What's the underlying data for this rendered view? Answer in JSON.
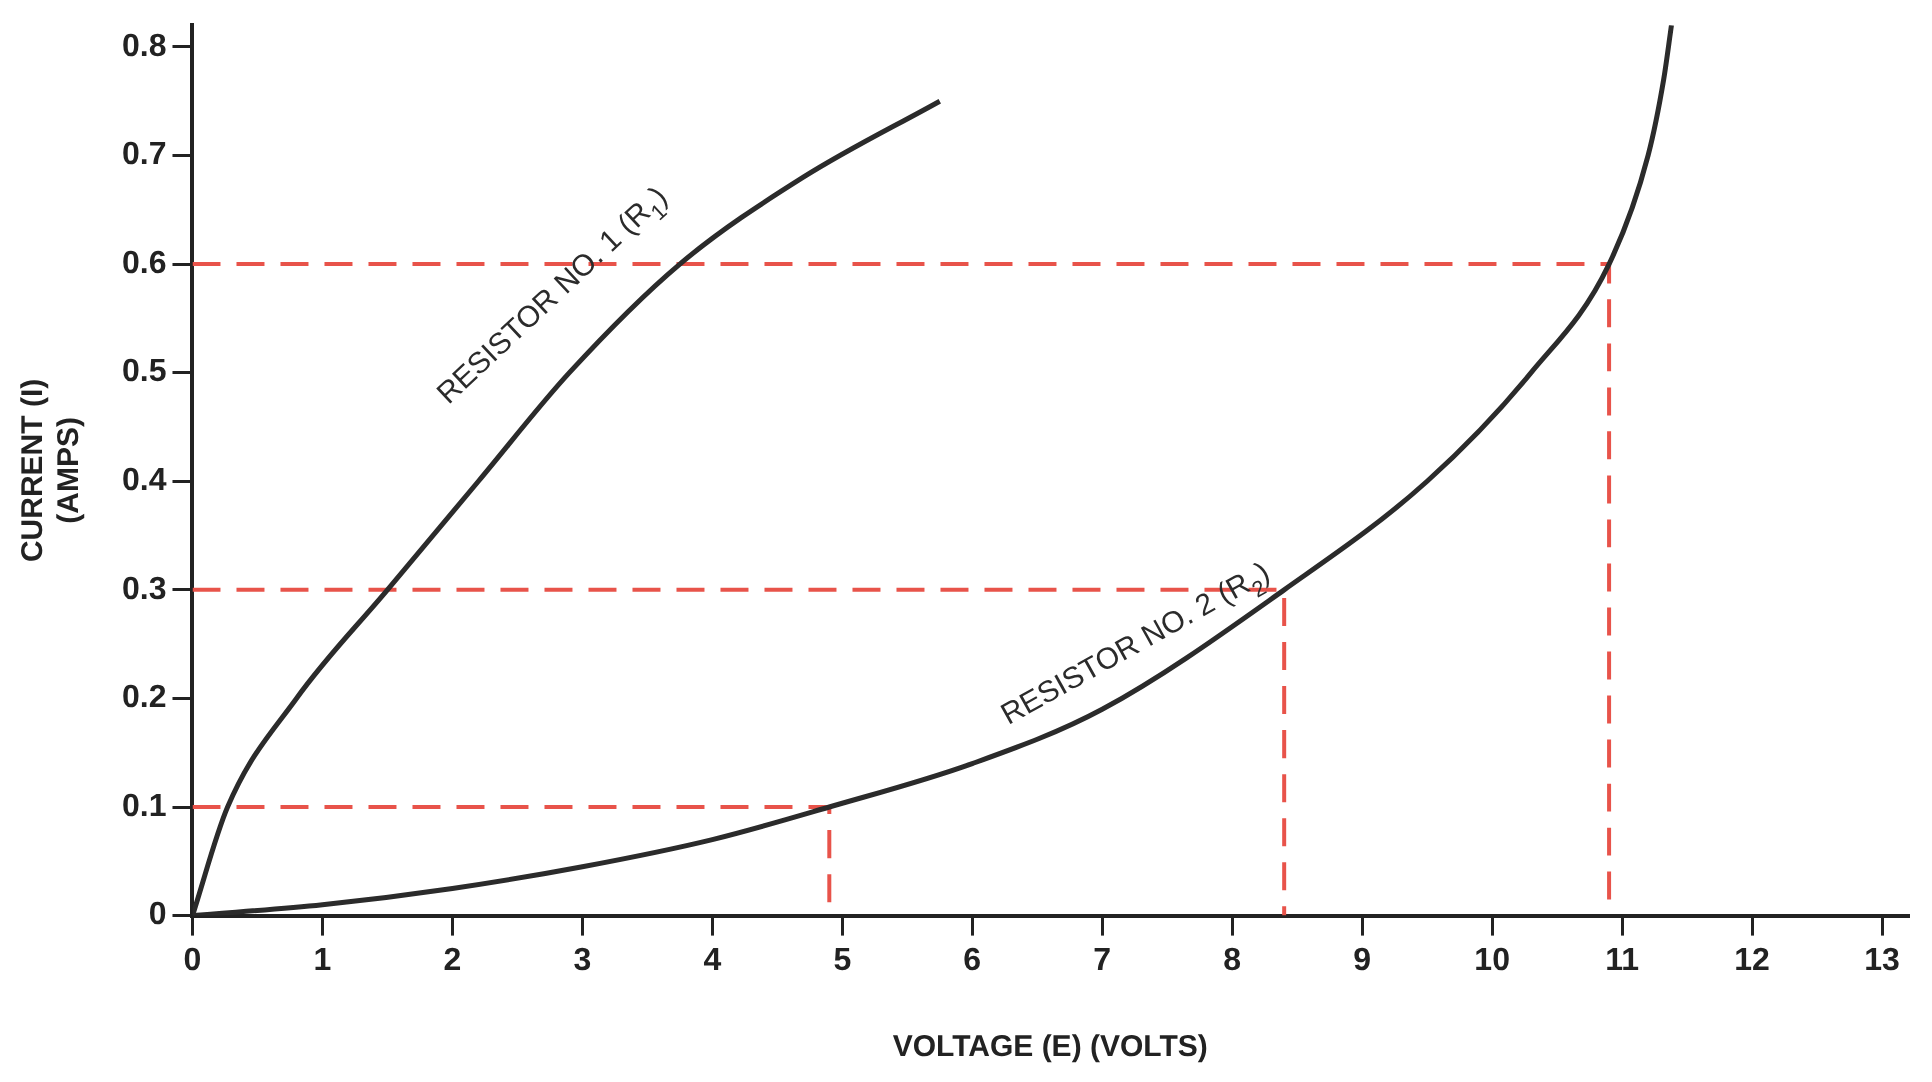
{
  "chart_data": {
    "type": "line",
    "xlabel": "VOLTAGE (E) (VOLTS)",
    "ylabel": "CURRENT (I)\n(AMPS)",
    "xlim": [
      0,
      13.2
    ],
    "xticks": [
      0,
      1,
      2,
      3,
      4,
      5,
      6,
      7,
      8,
      9,
      10,
      11,
      12,
      13
    ],
    "ylim": [
      0,
      0.82
    ],
    "yticks": [
      0,
      0.1,
      0.2,
      0.3,
      0.4,
      0.5,
      0.6,
      0.7,
      0.8
    ],
    "grid": false,
    "legend": false,
    "marker": "none",
    "series": [
      {
        "color": "#2b2b2b",
        "line_style": "solid",
        "x": [
          0,
          0.27,
          0.8,
          1.5,
          2.2,
          2.9,
          3.75,
          4.7,
          5.75
        ],
        "values": [
          0,
          0.1,
          0.2,
          0.3,
          0.4,
          0.5,
          0.6,
          0.68,
          0.75
        ]
      },
      {
        "color": "#2b2b2b",
        "line_style": "solid",
        "x": [
          0,
          1,
          2,
          3,
          4,
          4.9,
          6,
          7,
          8.4,
          9.5,
          10.3,
          10.9,
          11.2,
          11.32,
          11.38
        ],
        "values": [
          0,
          0.01,
          0.025,
          0.045,
          0.07,
          0.1,
          0.14,
          0.19,
          0.3,
          0.4,
          0.5,
          0.6,
          0.7,
          0.77,
          0.82
        ]
      },
      {
        "color": "#e8534a",
        "line_style": "dashed",
        "x": [
          0,
          4.9,
          4.9
        ],
        "values": [
          0.1,
          0.1,
          0
        ]
      },
      {
        "color": "#e8534a",
        "line_style": "dashed",
        "x": [
          0,
          8.4,
          8.4
        ],
        "values": [
          0.3,
          0.3,
          0
        ]
      },
      {
        "color": "#e8534a",
        "line_style": "dashed",
        "x": [
          0,
          10.9,
          10.9
        ],
        "values": [
          0.6,
          0.6,
          0
        ]
      }
    ],
    "annotations": [
      "RESISTOR NO. 1 (R$_{1}$)",
      "RESISTOR NO. 2 (R$_{2}$)"
    ]
  }
}
